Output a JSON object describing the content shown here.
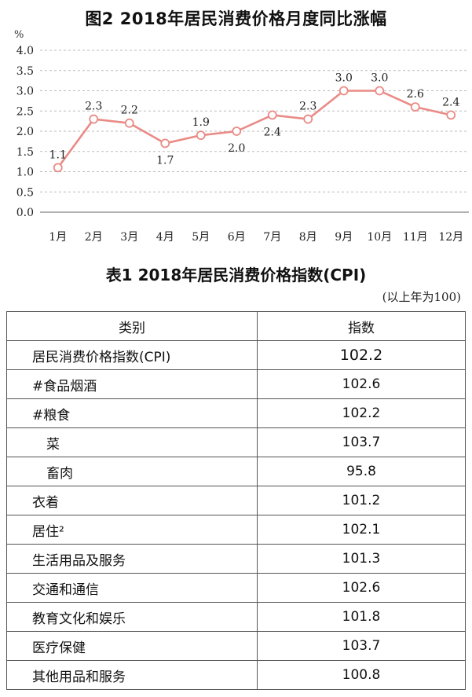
{
  "chart_data": {
    "type": "line",
    "title": "图2 2018年居民消费价格月度同比涨幅",
    "ylabel": "%",
    "ylim": [
      0,
      4.0
    ],
    "yticks": [
      "0.0",
      "0.5",
      "1.0",
      "1.5",
      "2.0",
      "2.5",
      "3.0",
      "3.5",
      "4.0"
    ],
    "categories": [
      "1月",
      "2月",
      "3月",
      "4月",
      "5月",
      "6月",
      "7月",
      "8月",
      "9月",
      "10月",
      "11月",
      "12月"
    ],
    "values": [
      1.1,
      2.3,
      2.2,
      1.7,
      1.9,
      2.0,
      2.4,
      2.3,
      3.0,
      3.0,
      2.6,
      2.4
    ],
    "data_labels": [
      "1.1",
      "2.3",
      "2.2",
      "1.7",
      "1.9",
      "2.0",
      "2.4",
      "2.3",
      "3.0",
      "3.0",
      "2.6",
      "2.4"
    ],
    "label_positions": [
      "above",
      "above",
      "above",
      "below",
      "above",
      "below",
      "below",
      "above",
      "above",
      "above",
      "above",
      "above"
    ],
    "grid": "horizontal-dashed",
    "line_color": "#e98b86"
  },
  "table": {
    "title": "表1 2018年居民消费价格指数(CPI)",
    "note": "(以上年为100)",
    "headers": [
      "类别",
      "指数"
    ],
    "rows": [
      {
        "category": "居民消费价格指数(CPI)",
        "index": "102.2"
      },
      {
        "category": "#食品烟酒",
        "index": "102.6"
      },
      {
        "category": "#粮食",
        "index": "102.2"
      },
      {
        "category": "菜",
        "index": "103.7"
      },
      {
        "category": "畜肉",
        "index": "95.8"
      },
      {
        "category": "衣着",
        "index": "101.2"
      },
      {
        "category": "居住²",
        "index": "102.1"
      },
      {
        "category": "生活用品及服务",
        "index": "101.3"
      },
      {
        "category": "交通和通信",
        "index": "102.6"
      },
      {
        "category": "教育文化和娱乐",
        "index": "101.8"
      },
      {
        "category": "医疗保健",
        "index": "103.7"
      },
      {
        "category": "其他用品和服务",
        "index": "100.8"
      }
    ]
  }
}
